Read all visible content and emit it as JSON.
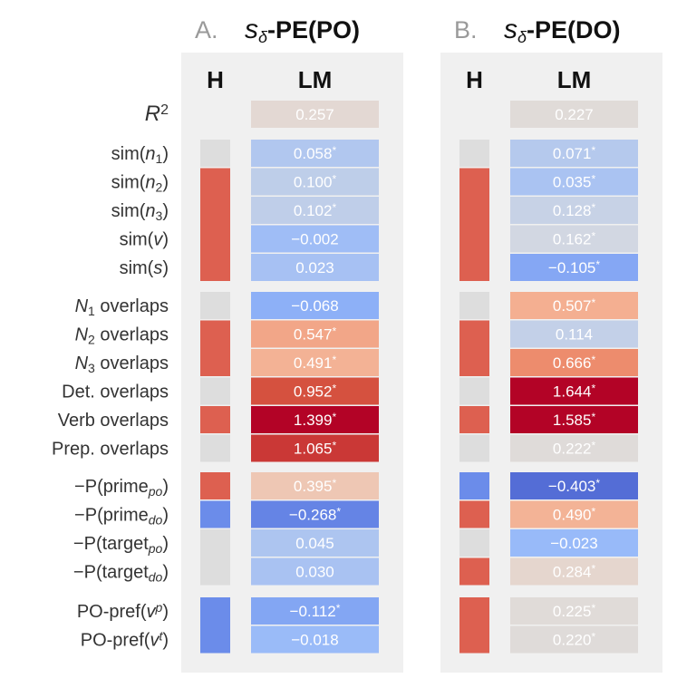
{
  "chart_data": {
    "type": "heatmap",
    "row_groups": [
      [
        {
          "base": "R",
          "sup": "2",
          "style": "math"
        }
      ],
      [
        {
          "pre": "sim(",
          "it": "n",
          "sub": "1",
          "post": ")"
        },
        {
          "pre": "sim(",
          "it": "n",
          "sub": "2",
          "post": ")"
        },
        {
          "pre": "sim(",
          "it": "n",
          "sub": "3",
          "post": ")"
        },
        {
          "pre": "sim(",
          "it": "v",
          "post": ")"
        },
        {
          "pre": "sim(",
          "it": "s",
          "post": ")"
        }
      ],
      [
        {
          "it": "N",
          "sub": "1",
          "post": " overlaps"
        },
        {
          "it": "N",
          "sub": "2",
          "post": " overlaps"
        },
        {
          "it": "N",
          "sub": "3",
          "post": " overlaps"
        },
        {
          "pre": "Det. overlaps"
        },
        {
          "pre": "Verb overlaps"
        },
        {
          "pre": "Prep. overlaps"
        }
      ],
      [
        {
          "pre": "−P(prime",
          "sub": "po",
          "post": ")"
        },
        {
          "pre": "−P(prime",
          "sub": "do",
          "post": ")"
        },
        {
          "pre": "−P(target",
          "sub": "po",
          "post": ")"
        },
        {
          "pre": "−P(target",
          "sub": "do",
          "post": ")"
        }
      ],
      [
        {
          "pre": "PO-pref(",
          "it": "v",
          "sup": "p",
          "post": ")"
        },
        {
          "pre": "PO-pref(",
          "it": "v",
          "sup": "t",
          "post": ")"
        }
      ]
    ],
    "column_headers": [
      "H",
      "LM"
    ],
    "panels": [
      {
        "letter": "A.",
        "title_symbol": "s",
        "title_sub": "δ",
        "title_rest": "-PE(PO)",
        "lm_values": [
          [
            0.257
          ],
          [
            0.058,
            0.1,
            0.102,
            -0.002,
            0.023
          ],
          [
            -0.068,
            0.547,
            0.491,
            0.952,
            1.399,
            1.065
          ],
          [
            0.395,
            -0.268,
            0.045,
            0.03
          ],
          [
            -0.112,
            -0.018
          ]
        ],
        "lm_labels": [
          [
            "0.257"
          ],
          [
            "0.058",
            "0.100",
            "0.102",
            "−0.002",
            "0.023"
          ],
          [
            "−0.068",
            "0.547",
            "0.491",
            "0.952",
            "1.399",
            "1.065"
          ],
          [
            "0.395",
            "−0.268",
            "0.045",
            "0.030"
          ],
          [
            "−0.112",
            "−0.018"
          ]
        ],
        "significant": [
          [
            false
          ],
          [
            true,
            true,
            true,
            false,
            false
          ],
          [
            false,
            true,
            true,
            true,
            true,
            true
          ],
          [
            true,
            true,
            false,
            false
          ],
          [
            true,
            false
          ]
        ],
        "human": [
          [],
          [
            "neutral",
            "positive",
            "positive",
            "positive",
            "positive"
          ],
          [
            "neutral",
            "positive",
            "positive",
            "neutral",
            "positive",
            "neutral"
          ],
          [
            "positive",
            "negative",
            "neutral",
            "neutral"
          ],
          [
            "negative",
            "negative"
          ]
        ]
      },
      {
        "letter": "B.",
        "title_symbol": "s",
        "title_sub": "δ",
        "title_rest": "-PE(DO)",
        "lm_values": [
          [
            0.227
          ],
          [
            0.071,
            0.035,
            0.128,
            0.162,
            -0.105
          ],
          [
            0.507,
            0.114,
            0.666,
            1.644,
            1.585,
            0.222
          ],
          [
            -0.403,
            0.49,
            -0.023,
            0.284
          ],
          [
            0.225,
            0.22
          ]
        ],
        "lm_labels": [
          [
            "0.227"
          ],
          [
            "0.071",
            "0.035",
            "0.128",
            "0.162",
            "−0.105"
          ],
          [
            "0.507",
            "0.114",
            "0.666",
            "1.644",
            "1.585",
            "0.222"
          ],
          [
            "−0.403",
            "0.490",
            "−0.023",
            "0.284"
          ],
          [
            "0.225",
            "0.220"
          ]
        ],
        "significant": [
          [
            false
          ],
          [
            true,
            true,
            true,
            true,
            true
          ],
          [
            true,
            false,
            true,
            true,
            true,
            true
          ],
          [
            true,
            true,
            false,
            true
          ],
          [
            true,
            true
          ]
        ],
        "human": [
          [],
          [
            "neutral",
            "positive",
            "positive",
            "positive",
            "positive"
          ],
          [
            "neutral",
            "positive",
            "positive",
            "neutral",
            "positive",
            "neutral"
          ],
          [
            "negative",
            "positive",
            "neutral",
            "positive"
          ],
          [
            "positive",
            "positive"
          ]
        ]
      }
    ],
    "significance_marker": "*",
    "colormap": "coolwarm",
    "color_scale": [
      -0.6,
      1.3
    ],
    "colors": {
      "panel_bg": "#f0f0f0",
      "human_positive": "#dd6050",
      "human_negative": "#6b8cea",
      "human_neutral": "#dddddd"
    }
  }
}
